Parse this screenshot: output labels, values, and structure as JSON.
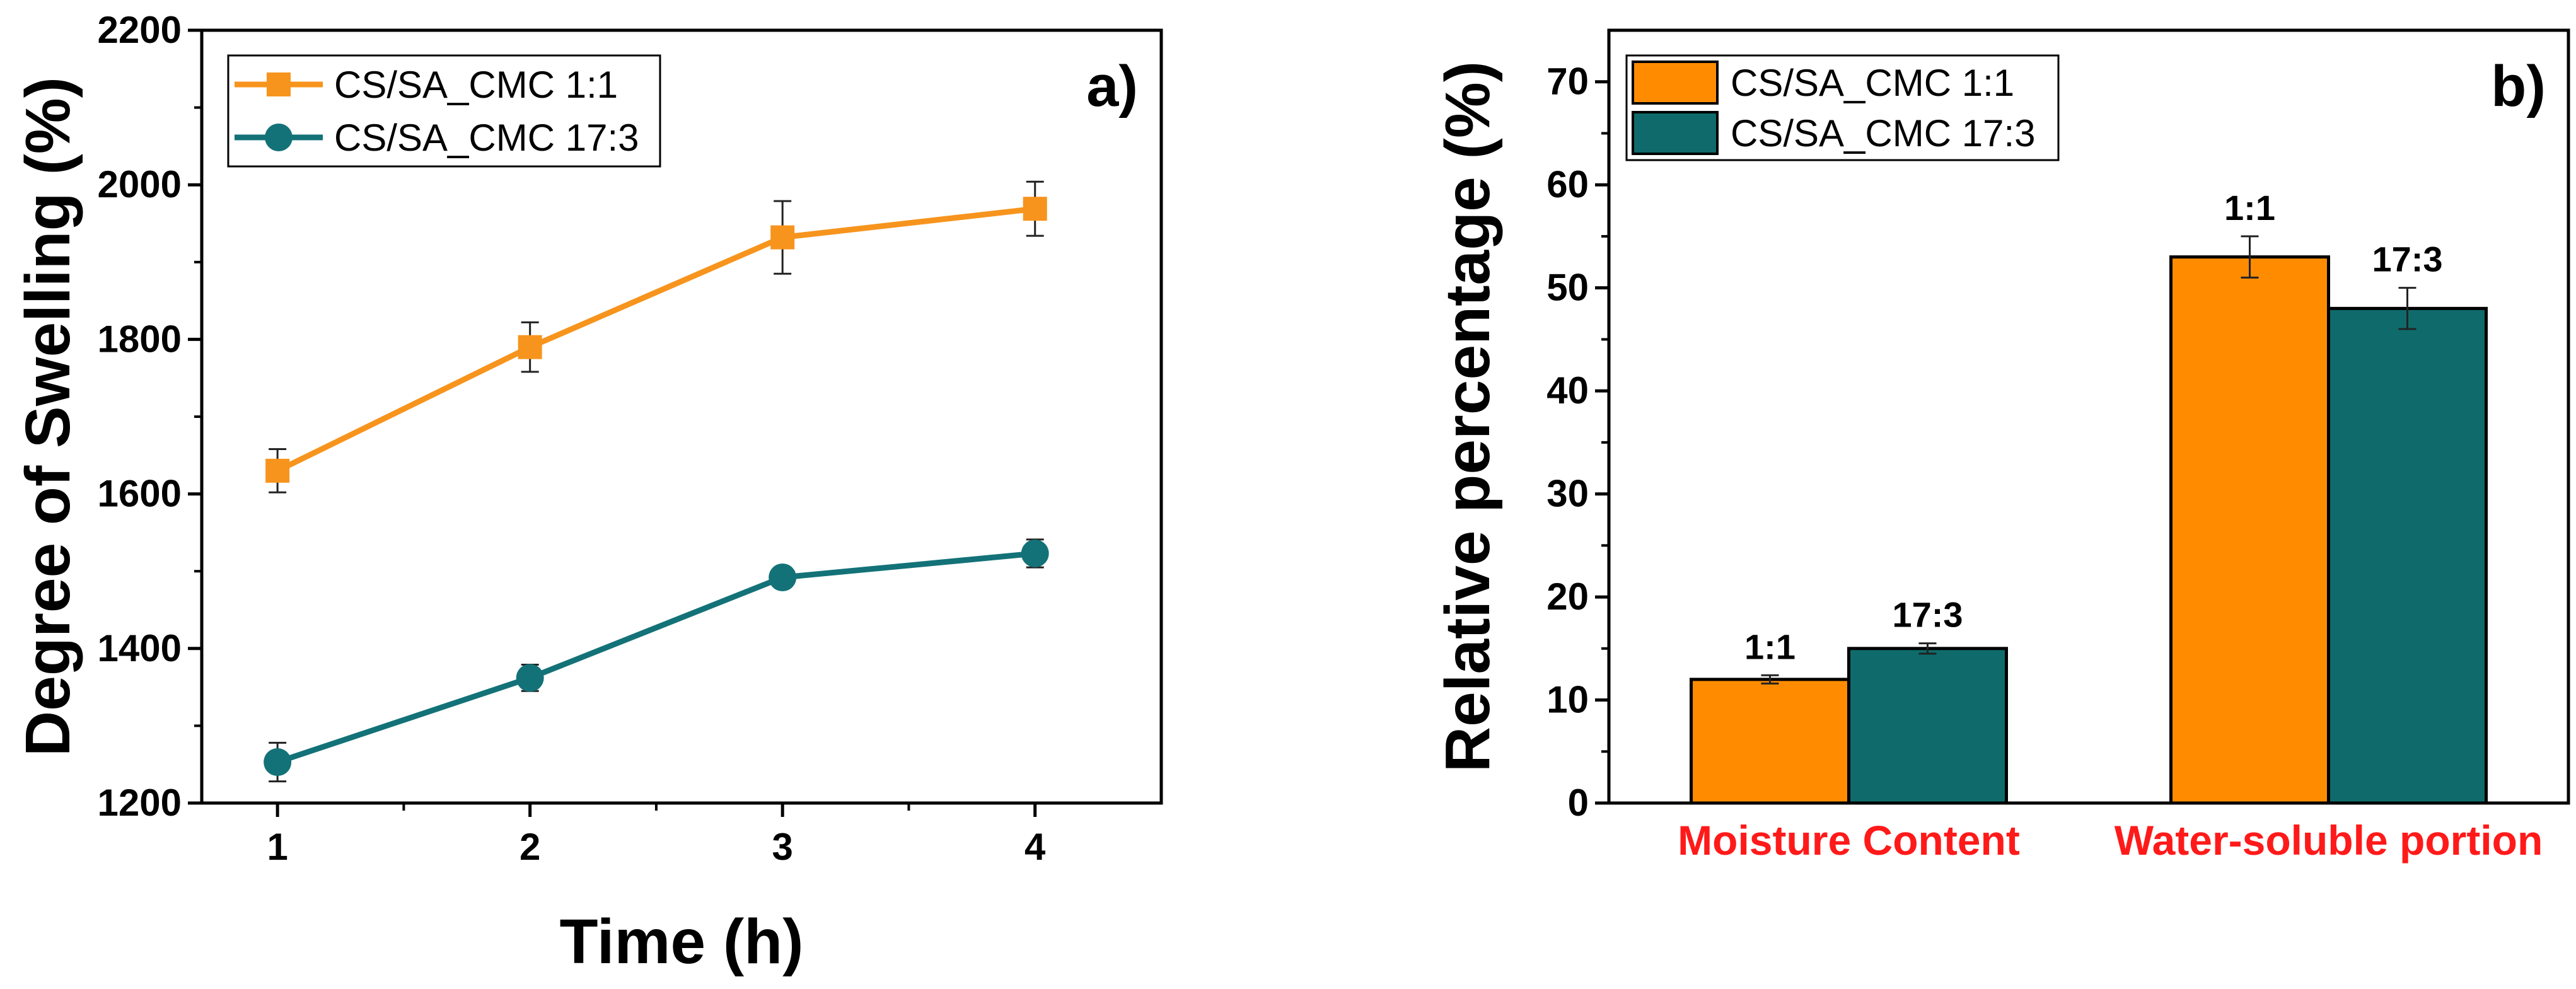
{
  "chart_data": [
    {
      "type": "line",
      "panel_label": "a)",
      "xlabel": "Time (h)",
      "ylabel": "Degree of Swelling (%)",
      "x": [
        1,
        2,
        3,
        4
      ],
      "xlim": [
        0.7,
        4.5
      ],
      "ylim": [
        1200,
        2200
      ],
      "x_ticks": [
        1,
        2,
        3,
        4
      ],
      "y_ticks": [
        1200,
        1400,
        1600,
        1800,
        2000,
        2200
      ],
      "legend_position": "top-left",
      "grid": false,
      "series": [
        {
          "name": "CS/SA_CMC 1:1",
          "marker": "square",
          "color": "#f7941d",
          "values": [
            1630,
            1790,
            1932,
            1969
          ],
          "errors": [
            28,
            32,
            47,
            35
          ]
        },
        {
          "name": "CS/SA_CMC 17:3",
          "marker": "circle",
          "color": "#137278",
          "values": [
            1253,
            1362,
            1492,
            1523
          ],
          "errors": [
            25,
            17,
            12,
            18
          ]
        }
      ]
    },
    {
      "type": "bar",
      "panel_label": "b)",
      "xlabel": "",
      "ylabel": "Relative percentage (%)",
      "categories": [
        "Moisture Content",
        "Water-soluble portion"
      ],
      "category_label_color": "#ff1a1a",
      "ylim": [
        0,
        75
      ],
      "y_ticks": [
        0,
        10,
        20,
        30,
        40,
        50,
        60,
        70
      ],
      "legend_position": "top-left",
      "grid": false,
      "series": [
        {
          "name": "CS/SA_CMC 1:1",
          "color": "#ff8c00",
          "bar_label": "1:1",
          "values": [
            12,
            53
          ],
          "errors": [
            0.4,
            2.0
          ]
        },
        {
          "name": "CS/SA_CMC 17:3",
          "color": "#0f6b6b",
          "bar_label": "17:3",
          "values": [
            15,
            48
          ],
          "errors": [
            0.5,
            2.0
          ]
        }
      ]
    }
  ]
}
